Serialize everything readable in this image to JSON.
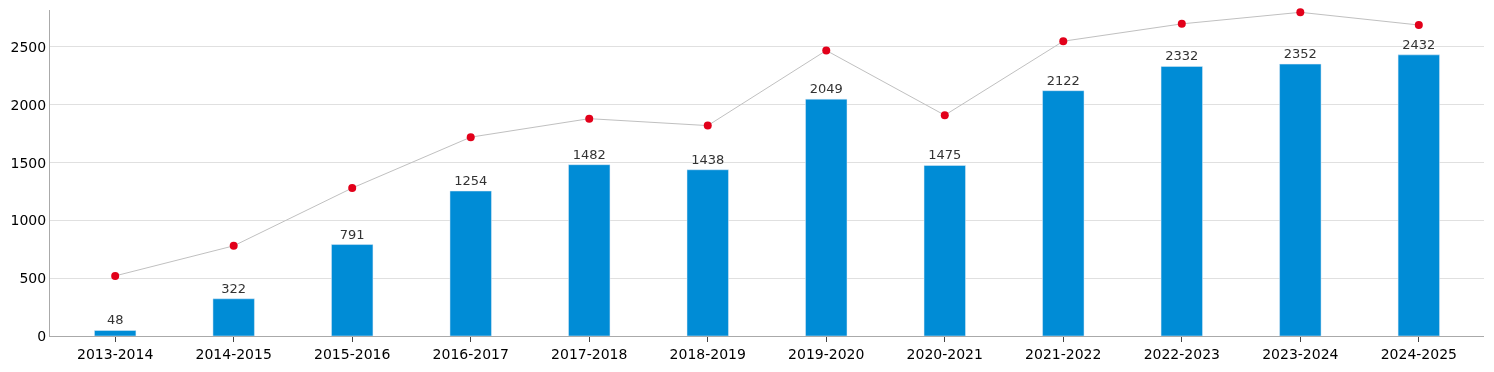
{
  "chart_data": {
    "type": "bar",
    "categories": [
      "2013-2014",
      "2014-2015",
      "2015-2016",
      "2016-2017",
      "2017-2018",
      "2018-2019",
      "2019-2020",
      "2020-2021",
      "2021-2022",
      "2022-2023",
      "2023-2024",
      "2024-2025"
    ],
    "series": [
      {
        "color": "#008cd6",
        "values": [
          48,
          322,
          791,
          1254,
          1482,
          1438,
          2049,
          1475,
          2122,
          2332,
          2352,
          2432
        ],
        "value_labels": [
          "48",
          "322",
          "791",
          "1254",
          "1482",
          "1438",
          "2049",
          "1475",
          "2122",
          "2332",
          "2352",
          "2432"
        ]
      },
      {
        "type": "line",
        "color": "#c0c0c0",
        "colors": [
          "#e2001a",
          "#e2001a",
          "#e2001a",
          "#e2001a",
          "#e2001a",
          "#e2001a",
          "#e2001a",
          "#e2001a",
          "#e2001a",
          "#e2001a",
          "#e2001a",
          "#e2001a"
        ],
        "values": [
          520,
          780,
          1280,
          1720,
          1880,
          1820,
          2470,
          1910,
          2550,
          2700,
          2800,
          2690
        ]
      }
    ],
    "ylim": [
      0,
      2820
    ],
    "yticks": [
      0,
      500,
      1000,
      1500,
      2000,
      2500
    ],
    "grid": "y",
    "marker": "circle"
  }
}
